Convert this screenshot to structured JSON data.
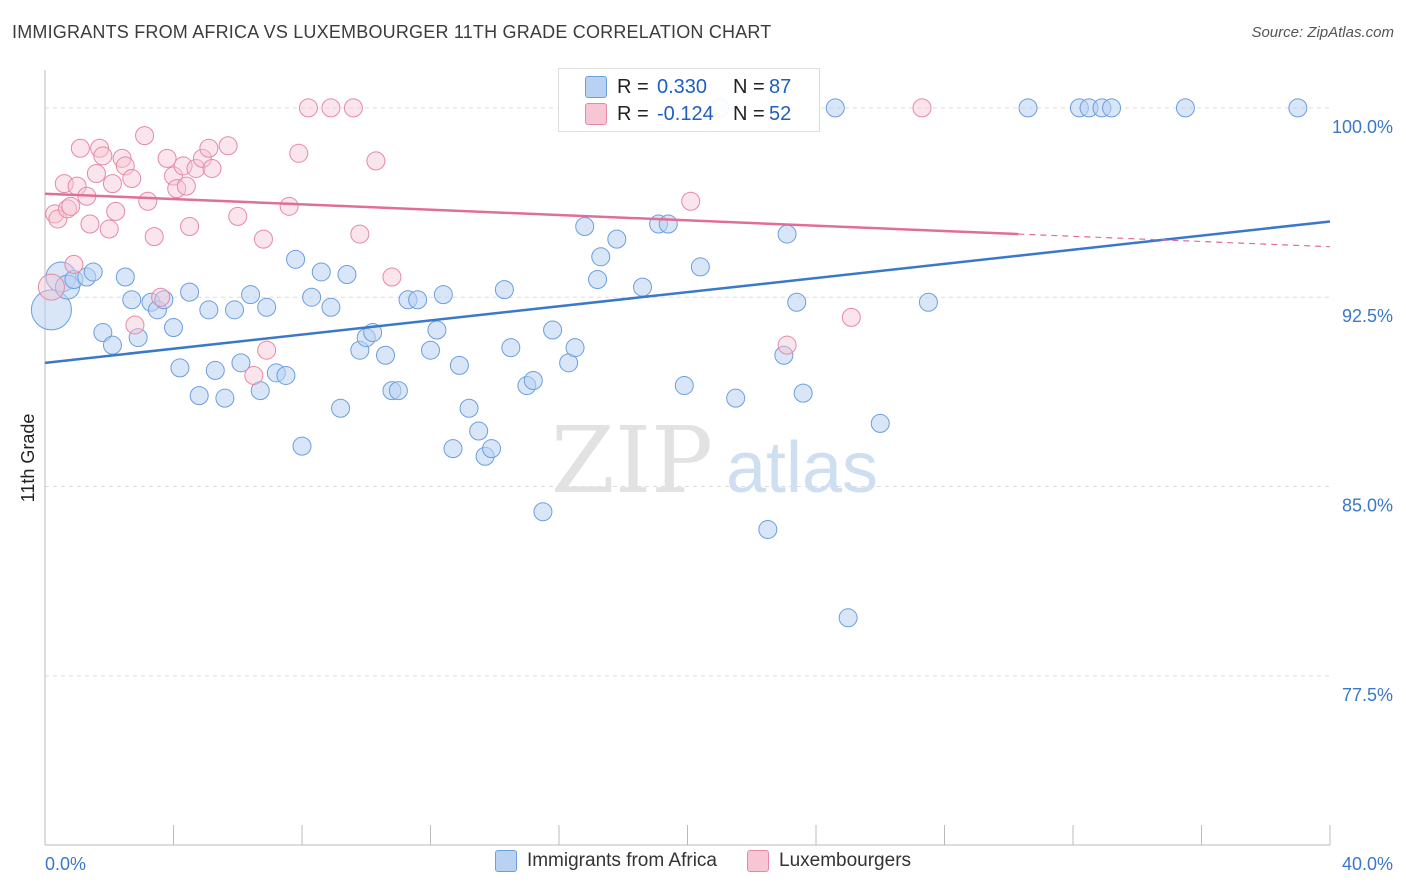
{
  "title": "IMMIGRANTS FROM AFRICA VS LUXEMBOURGER 11TH GRADE CORRELATION CHART",
  "source": "Source: ZipAtlas.com",
  "watermark": {
    "part1": "ZIP",
    "part2": "atlas"
  },
  "legend": {
    "r_label": "R =",
    "n_label": "N =",
    "items": [
      {
        "name": "Immigrants from Africa",
        "r": "0.330",
        "n": "87",
        "color": "#6b9ee0",
        "fill": "#b9d2f2"
      },
      {
        "name": "Luxembourgers",
        "r": "-0.124",
        "n": "52",
        "color": "#e888a6",
        "fill": "#f7c6d5"
      }
    ]
  },
  "chart_data": {
    "type": "scatter",
    "title": "IMMIGRANTS FROM AFRICA VS LUXEMBOURGER 11TH GRADE CORRELATION CHART",
    "xlabel": "",
    "ylabel": "11th Grade",
    "xlim": [
      0,
      40
    ],
    "ylim": [
      70.8,
      101.5
    ],
    "x_tick_labels": [
      "0.0%",
      "40.0%"
    ],
    "y_ticks": [
      77.5,
      85.0,
      92.5,
      100.0
    ],
    "y_tick_labels": [
      "77.5%",
      "85.0%",
      "92.5%",
      "100.0%"
    ],
    "grid": true,
    "series": [
      {
        "name": "Immigrants from Africa",
        "color": "#3a78c9",
        "points": [
          [
            0.2,
            92.0
          ],
          [
            0.5,
            93.3
          ],
          [
            0.7,
            92.9
          ],
          [
            0.9,
            93.2
          ],
          [
            1.3,
            93.3
          ],
          [
            1.5,
            93.5
          ],
          [
            1.8,
            91.1
          ],
          [
            2.1,
            90.6
          ],
          [
            2.5,
            93.3
          ],
          [
            2.7,
            92.4
          ],
          [
            2.9,
            90.9
          ],
          [
            3.3,
            92.3
          ],
          [
            3.5,
            92.0
          ],
          [
            3.7,
            92.4
          ],
          [
            4.0,
            91.3
          ],
          [
            4.2,
            89.7
          ],
          [
            4.5,
            92.7
          ],
          [
            4.8,
            88.6
          ],
          [
            5.1,
            92.0
          ],
          [
            5.3,
            89.6
          ],
          [
            5.6,
            88.5
          ],
          [
            5.9,
            92.0
          ],
          [
            6.1,
            89.9
          ],
          [
            6.4,
            92.6
          ],
          [
            6.7,
            88.8
          ],
          [
            6.9,
            92.1
          ],
          [
            7.2,
            89.5
          ],
          [
            7.5,
            89.4
          ],
          [
            7.8,
            94.0
          ],
          [
            8.0,
            86.6
          ],
          [
            8.3,
            92.5
          ],
          [
            8.6,
            93.5
          ],
          [
            8.9,
            92.1
          ],
          [
            9.2,
            88.1
          ],
          [
            9.4,
            93.4
          ],
          [
            9.8,
            90.4
          ],
          [
            10.0,
            90.9
          ],
          [
            10.2,
            91.1
          ],
          [
            10.6,
            90.2
          ],
          [
            10.8,
            88.8
          ],
          [
            11.0,
            88.8
          ],
          [
            11.3,
            92.4
          ],
          [
            11.6,
            92.4
          ],
          [
            12.0,
            90.4
          ],
          [
            12.2,
            91.2
          ],
          [
            12.4,
            92.6
          ],
          [
            12.9,
            89.8
          ],
          [
            13.2,
            88.1
          ],
          [
            13.5,
            87.2
          ],
          [
            13.7,
            86.2
          ],
          [
            13.9,
            86.5
          ],
          [
            14.3,
            92.8
          ],
          [
            14.5,
            90.5
          ],
          [
            15.0,
            89.0
          ],
          [
            15.2,
            89.2
          ],
          [
            15.5,
            84.0
          ],
          [
            15.8,
            91.2
          ],
          [
            16.3,
            89.9
          ],
          [
            16.5,
            90.5
          ],
          [
            16.8,
            95.3
          ],
          [
            17.2,
            93.2
          ],
          [
            17.3,
            94.1
          ],
          [
            17.8,
            94.8
          ],
          [
            18.6,
            92.9
          ],
          [
            19.1,
            95.4
          ],
          [
            19.4,
            95.4
          ],
          [
            19.9,
            89.0
          ],
          [
            20.4,
            93.7
          ],
          [
            21.0,
            100.0
          ],
          [
            21.5,
            88.5
          ],
          [
            23.0,
            90.2
          ],
          [
            23.1,
            95.0
          ],
          [
            23.4,
            92.3
          ],
          [
            23.6,
            88.7
          ],
          [
            24.6,
            100.0
          ],
          [
            25.0,
            79.8
          ],
          [
            26.0,
            87.5
          ],
          [
            27.5,
            92.3
          ],
          [
            30.6,
            100.0
          ],
          [
            32.2,
            100.0
          ],
          [
            32.5,
            100.0
          ],
          [
            32.9,
            100.0
          ],
          [
            33.2,
            100.0
          ],
          [
            35.5,
            100.0
          ],
          [
            39.0,
            100.0
          ],
          [
            22.5,
            83.3
          ],
          [
            12.7,
            86.5
          ]
        ],
        "trend": {
          "x": [
            0,
            40
          ],
          "y": [
            89.9,
            95.5
          ]
        }
      },
      {
        "name": "Luxembourgers",
        "color": "#e06e96",
        "points": [
          [
            0.2,
            92.9
          ],
          [
            0.3,
            95.8
          ],
          [
            0.4,
            95.6
          ],
          [
            0.6,
            97.0
          ],
          [
            0.7,
            96.0
          ],
          [
            0.8,
            96.1
          ],
          [
            0.9,
            93.8
          ],
          [
            1.0,
            96.9
          ],
          [
            1.1,
            98.4
          ],
          [
            1.3,
            96.5
          ],
          [
            1.4,
            95.4
          ],
          [
            1.6,
            97.4
          ],
          [
            1.7,
            98.4
          ],
          [
            1.8,
            98.1
          ],
          [
            2.0,
            95.2
          ],
          [
            2.1,
            97.0
          ],
          [
            2.2,
            95.9
          ],
          [
            2.4,
            98.0
          ],
          [
            2.5,
            97.7
          ],
          [
            2.7,
            97.2
          ],
          [
            2.8,
            91.4
          ],
          [
            3.1,
            98.9
          ],
          [
            3.2,
            96.3
          ],
          [
            3.4,
            94.9
          ],
          [
            3.6,
            92.5
          ],
          [
            3.8,
            98.0
          ],
          [
            4.0,
            97.3
          ],
          [
            4.1,
            96.8
          ],
          [
            4.3,
            97.7
          ],
          [
            4.4,
            96.9
          ],
          [
            4.5,
            95.3
          ],
          [
            4.7,
            97.6
          ],
          [
            4.9,
            98.0
          ],
          [
            5.1,
            98.4
          ],
          [
            5.2,
            97.6
          ],
          [
            5.7,
            98.5
          ],
          [
            6.0,
            95.7
          ],
          [
            6.5,
            89.4
          ],
          [
            6.8,
            94.8
          ],
          [
            6.9,
            90.4
          ],
          [
            7.6,
            96.1
          ],
          [
            7.9,
            98.2
          ],
          [
            8.2,
            100.0
          ],
          [
            8.9,
            100.0
          ],
          [
            9.6,
            100.0
          ],
          [
            9.8,
            95.0
          ],
          [
            10.3,
            97.9
          ],
          [
            10.8,
            93.3
          ],
          [
            20.1,
            96.3
          ],
          [
            23.1,
            90.6
          ],
          [
            25.1,
            91.7
          ],
          [
            27.3,
            100.0
          ]
        ],
        "trend": {
          "x": [
            0,
            30.3
          ],
          "y": [
            96.6,
            95.0
          ]
        },
        "trend_dashed": {
          "x": [
            30.3,
            40
          ],
          "y": [
            95.0,
            94.5
          ]
        }
      }
    ]
  }
}
